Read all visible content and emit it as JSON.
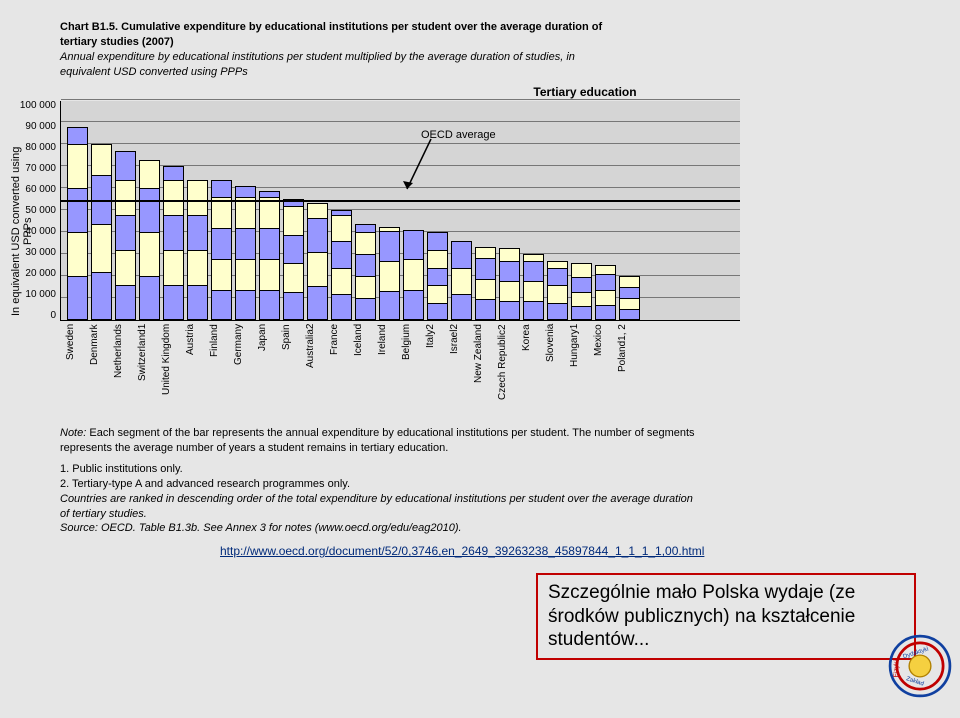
{
  "title_line1": "Chart B1.5. Cumulative expenditure by educational institutions per student over the average duration of",
  "title_line2": "tertiary studies (2007)",
  "subtitle_line1": "Annual expenditure by educational institutions per student multiplied by the average duration of studies, in",
  "subtitle_line2": "equivalent USD converted using PPPs",
  "section_title": "Tertiary education",
  "y_axis_label": "In equivalent USD converted using PPPs",
  "y_max": 100000,
  "y_ticks": [
    "100 000",
    "90 000",
    "80 000",
    "70 000",
    "60 000",
    "50 000",
    "40 000",
    "30 000",
    "20 000",
    "10 000",
    "0"
  ],
  "oecd_avg_value": 54000,
  "oecd_avg_label": "OECD average",
  "colors": {
    "seg_a": "#ffffcc",
    "seg_b": "#9797ff",
    "plot_bg": "#d5d5d5"
  },
  "categories": [
    "Sweden",
    "Denmark",
    "Netherlands",
    "Switzerland1",
    "United Kingdom",
    "Austria",
    "Finland",
    "Germany",
    "Japan",
    "Spain",
    "Australia2",
    "France",
    "Iceland",
    "Ireland",
    "Belgium",
    "Italy2",
    "Israel2",
    "New Zealand",
    "Czech Republic2",
    "Korea",
    "Slovenia",
    "Hungary1",
    "Mexico",
    "Poland1, 2"
  ],
  "bars": [
    {
      "segments": [
        20000,
        20000,
        20000,
        20000,
        8000
      ]
    },
    {
      "segments": [
        22000,
        22000,
        22000,
        14000
      ]
    },
    {
      "segments": [
        16000,
        16000,
        16000,
        16000,
        13000
      ]
    },
    {
      "segments": [
        20000,
        20000,
        20000,
        13000
      ]
    },
    {
      "segments": [
        16000,
        16000,
        16000,
        16000,
        6000
      ]
    },
    {
      "segments": [
        16000,
        16000,
        16000,
        16000
      ]
    },
    {
      "segments": [
        14000,
        14000,
        14000,
        14000,
        8000
      ]
    },
    {
      "segments": [
        14000,
        14000,
        14000,
        14000,
        5000
      ]
    },
    {
      "segments": [
        14000,
        14000,
        14000,
        14000,
        3000
      ]
    },
    {
      "segments": [
        13000,
        13000,
        13000,
        13000,
        3000
      ]
    },
    {
      "segments": [
        15500,
        15500,
        15500,
        7000
      ]
    },
    {
      "segments": [
        12000,
        12000,
        12000,
        12000,
        2000
      ]
    },
    {
      "segments": [
        10000,
        10000,
        10000,
        10000,
        4000
      ]
    },
    {
      "segments": [
        13500,
        13500,
        13500,
        2000
      ]
    },
    {
      "segments": [
        14000,
        14000,
        13000
      ]
    },
    {
      "segments": [
        8000,
        8000,
        8000,
        8000,
        8000
      ]
    },
    {
      "segments": [
        12000,
        12000,
        12000
      ]
    },
    {
      "segments": [
        9500,
        9500,
        9500,
        5000
      ]
    },
    {
      "segments": [
        9000,
        9000,
        9000,
        6000
      ]
    },
    {
      "segments": [
        9000,
        9000,
        9000,
        3000
      ]
    },
    {
      "segments": [
        8000,
        8000,
        8000,
        3000
      ]
    },
    {
      "segments": [
        6500,
        6500,
        6500,
        6500
      ]
    },
    {
      "segments": [
        7000,
        7000,
        7000,
        4000
      ]
    },
    {
      "segments": [
        5000,
        5000,
        5000,
        5000
      ]
    }
  ],
  "note_line1": "Note: Each segment of the bar represents the annual expenditure by educational institutions per student. The number of segments",
  "note_line2": "represents the average number of years a student remains in tertiary education.",
  "foot1": "1. Public institutions only.",
  "foot2": "2. Tertiary-type A and advanced research programmes only.",
  "foot3a": "Countries are ranked in descending order of the total expenditure by educational institutions per student over the average duration",
  "foot3b": "of tertiary studies.",
  "source": "Source: OECD. Table B1.3b. See Annex 3 for notes (www.oecd.org/edu/eag2010).",
  "annotation": "Szczególnie mało Polska wydaje (ze środków publicznych) na kształcenie studentów...",
  "link": "http://www.oecd.org/document/52/0,3746,en_2649_39263238_45897844_1_1_1_1,00.html"
}
